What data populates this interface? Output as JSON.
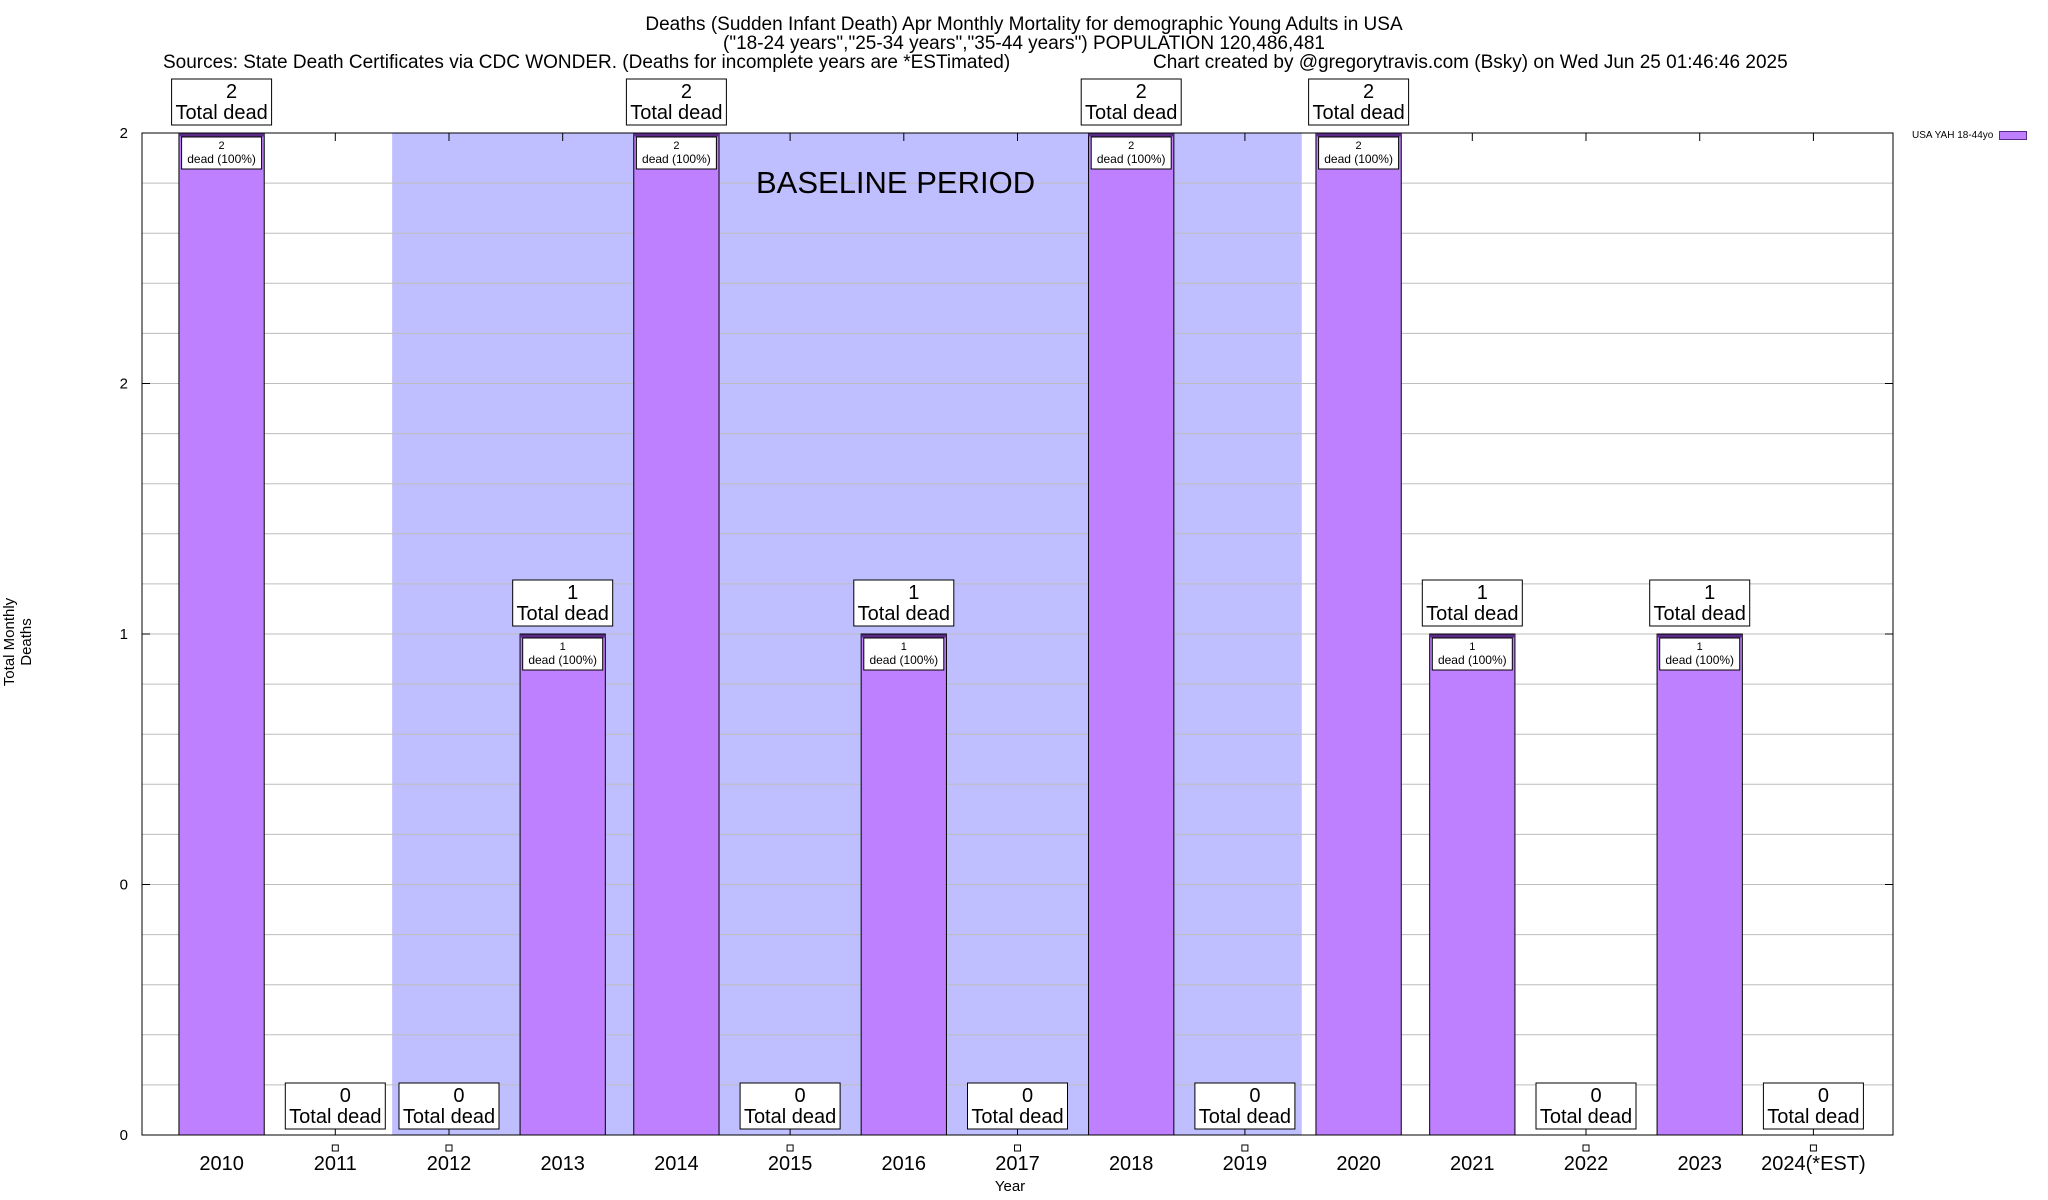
{
  "chart_data": {
    "type": "bar",
    "title_lines": [
      "Deaths (Sudden Infant Death) Apr Monthly Mortality for demographic Young Adults in USA",
      "(\"18-24 years\",\"25-34 years\",\"35-44 years\") POPULATION 120,486,481"
    ],
    "sources": "Sources: State Death Certificates via CDC WONDER. (Deaths for incomplete years are *ESTimated)",
    "credit": "Chart created by @gregorytravis.com (Bsky) on Wed Jun 25 01:46:46 2025",
    "xlabel": "Year",
    "ylabel": "Total Monthly Deaths",
    "categories": [
      "2010",
      "2011",
      "2012",
      "2013",
      "2014",
      "2015",
      "2016",
      "2017",
      "2018",
      "2019",
      "2020",
      "2021",
      "2022",
      "2023",
      "2024(*EST)"
    ],
    "series": [
      {
        "name": "USA YAH 18-44yo",
        "values": [
          2,
          0,
          0,
          1,
          2,
          0,
          1,
          0,
          2,
          0,
          2,
          1,
          0,
          1,
          0
        ],
        "color": "#bf80ff"
      }
    ],
    "ylim": [
      0,
      2
    ],
    "ytick_labels": [
      "0",
      "0",
      "1",
      "2",
      "2"
    ],
    "total_label_suffix": "Total dead",
    "bar_label_suffix": "dead (100%)",
    "annotation": "BASELINE PERIOD",
    "baseline_period": [
      "2012",
      "2019"
    ],
    "baseline_color": "#bfbfff",
    "legend_position": "top-right",
    "grid": true
  }
}
